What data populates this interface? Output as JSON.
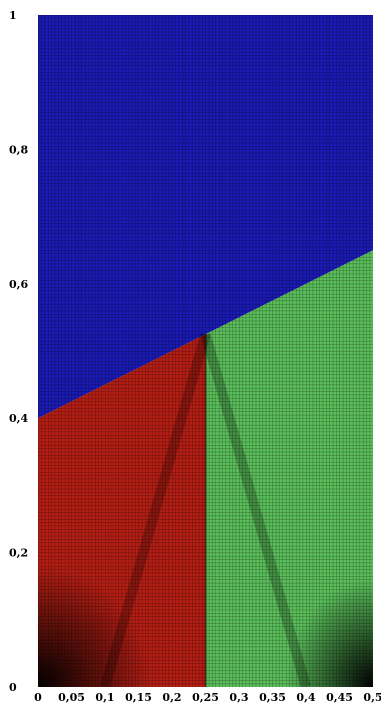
{
  "figure": {
    "type": "mesh-region-plot",
    "x_axis": {
      "range": [
        0,
        0.5
      ],
      "ticks": [
        0,
        0.05,
        0.1,
        0.15,
        0.2,
        0.25,
        0.3,
        0.35,
        0.4,
        0.45,
        0.5
      ],
      "tick_labels": [
        "0",
        "0,05",
        "0,1",
        "0,15",
        "0,2",
        "0,25",
        "0,3",
        "0,35",
        "0,4",
        "0,45",
        "0,5"
      ]
    },
    "y_axis": {
      "range": [
        0,
        1
      ],
      "ticks": [
        0,
        0.2,
        0.4,
        0.6,
        0.8,
        1
      ],
      "tick_labels": [
        "0",
        "0,2",
        "0,4",
        "0,6",
        "0,8",
        "1"
      ]
    },
    "colors": {
      "blue": "#1a1ab4",
      "red": "#b41e14",
      "green": "#5abe5a",
      "black": "#000000",
      "mesh_line": "#000000"
    },
    "regions": [
      {
        "name": "blue",
        "polygon": [
          [
            0,
            0.4
          ],
          [
            0.25,
            0.525
          ],
          [
            0.5,
            0.65
          ],
          [
            0.5,
            1
          ],
          [
            0,
            1
          ]
        ]
      },
      {
        "name": "red",
        "polygon": [
          [
            0,
            0
          ],
          [
            0.25,
            0
          ],
          [
            0.25,
            0.525
          ],
          [
            0,
            0.4
          ]
        ]
      },
      {
        "name": "green",
        "polygon": [
          [
            0.25,
            0
          ],
          [
            0.5,
            0
          ],
          [
            0.5,
            0.65
          ],
          [
            0.25,
            0.525
          ]
        ]
      }
    ],
    "mesh_cells": {
      "x": 100,
      "y": 200
    }
  }
}
